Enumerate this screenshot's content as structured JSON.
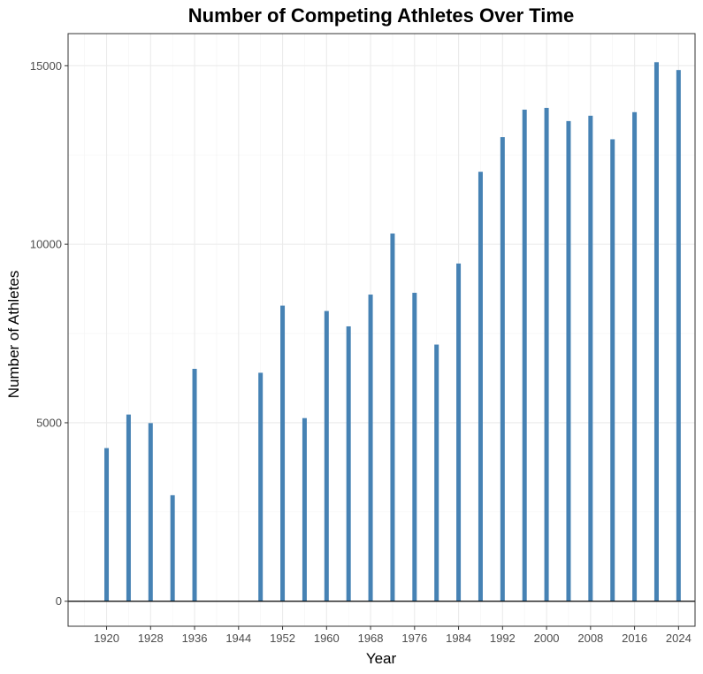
{
  "chart_data": {
    "type": "bar",
    "title": "Number of Competing Athletes Over Time",
    "xlabel": "Year",
    "ylabel": "Number of Athletes",
    "bar_color": "#4682b4",
    "xlim": [
      1913,
      2027
    ],
    "ylim": [
      -700,
      15900
    ],
    "grid": true,
    "x_ticks": [
      1920,
      1928,
      1936,
      1944,
      1952,
      1960,
      1968,
      1976,
      1984,
      1992,
      2000,
      2008,
      2016,
      2024
    ],
    "y_ticks": [
      0,
      5000,
      10000,
      15000
    ],
    "y_tick_labels": [
      "0",
      "5000",
      "10000",
      "15000"
    ],
    "x": [
      1920,
      1924,
      1928,
      1932,
      1936,
      1948,
      1952,
      1956,
      1960,
      1964,
      1968,
      1972,
      1976,
      1980,
      1984,
      1988,
      1992,
      1996,
      2000,
      2004,
      2008,
      2012,
      2016,
      2020,
      2024
    ],
    "values": [
      4290,
      5230,
      4990,
      2970,
      6510,
      6400,
      8280,
      5130,
      8130,
      7700,
      8590,
      10300,
      8640,
      7190,
      9460,
      12030,
      13000,
      13770,
      13820,
      13450,
      13600,
      12940,
      13700,
      15100,
      14880
    ]
  }
}
